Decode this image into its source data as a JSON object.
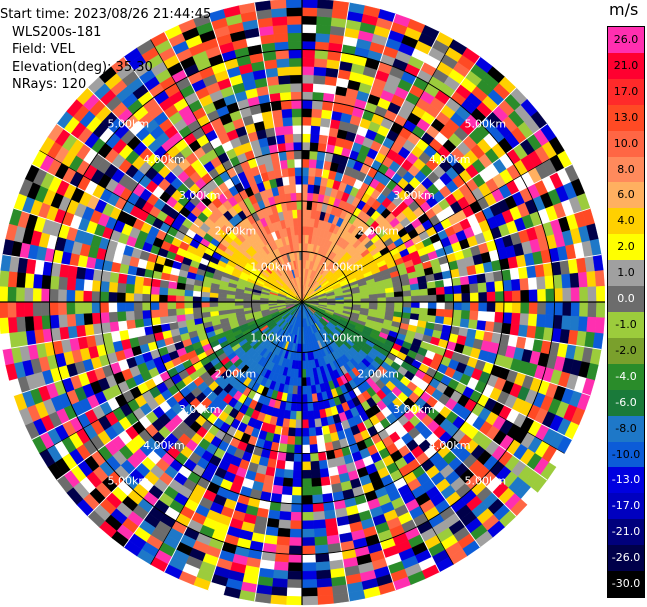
{
  "info": {
    "start_time": "Start time: 2023/08/26 21:44:45",
    "station": "WLS200s-181",
    "field": "Field: VEL",
    "elevation": "Elevation(deg): 35.30",
    "nrays": "NRays: 120"
  },
  "colorbar": {
    "unit": "m/s",
    "levels": [
      {
        "label": "26.0",
        "color": "#ff2fb0"
      },
      {
        "label": "21.0",
        "color": "#ff0030"
      },
      {
        "label": "17.0",
        "color": "#ff2a2a"
      },
      {
        "label": "13.0",
        "color": "#ff4a24"
      },
      {
        "label": "10.0",
        "color": "#ff6644"
      },
      {
        "label": "8.0",
        "color": "#ff8a5c"
      },
      {
        "label": "6.0",
        "color": "#ffb060"
      },
      {
        "label": "4.0",
        "color": "#ffd000"
      },
      {
        "label": "2.0",
        "color": "#ffff00"
      },
      {
        "label": "1.0",
        "color": "#a0a0a0"
      },
      {
        "label": "0.0",
        "color": "#6c6c6c"
      },
      {
        "label": "-1.0",
        "color": "#9ccc3c"
      },
      {
        "label": "-2.0",
        "color": "#7aa02c"
      },
      {
        "label": "-4.0",
        "color": "#2a8c2a"
      },
      {
        "label": "-6.0",
        "color": "#1a7a3a"
      },
      {
        "label": "-8.0",
        "color": "#1e78c8"
      },
      {
        "label": "-10.0",
        "color": "#0c5cd8"
      },
      {
        "label": "-13.0",
        "color": "#0000e0"
      },
      {
        "label": "-17.0",
        "color": "#0000c0"
      },
      {
        "label": "-21.0",
        "color": "#00007c"
      },
      {
        "label": "-26.0",
        "color": "#00004a"
      },
      {
        "label": "-30.0",
        "color": "#000000"
      }
    ]
  },
  "range_rings": [
    {
      "label": "1.00km",
      "km": 1
    },
    {
      "label": "2.00km",
      "km": 2
    },
    {
      "label": "3.00km",
      "km": 3
    },
    {
      "label": "4.00km",
      "km": 4
    },
    {
      "label": "5.00km",
      "km": 5
    }
  ],
  "max_range_km": 6.0,
  "n_rays": 120,
  "noise_palette": [
    "#ff2fb0",
    "#ff0030",
    "#0000e0",
    "#00004a",
    "#ffff00",
    "#2a8c2a",
    "#6c6c6c",
    "#ff6644",
    "#1e78c8",
    "#9ccc3c",
    "#ffd000",
    "#000000",
    "#ff4a24",
    "#0c5cd8",
    "#ffffff",
    "#a0a0a0"
  ]
}
